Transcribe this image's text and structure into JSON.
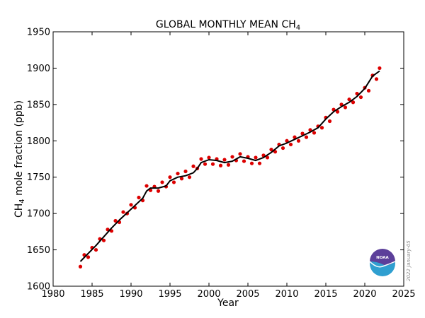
{
  "chart_data": {
    "type": "line",
    "title": "GLOBAL MONTHLY MEAN CH",
    "title_subscript": "4",
    "xlabel": "Year",
    "ylabel": {
      "pre": "CH",
      "sub": "4",
      "post": " mole fraction (ppb)"
    },
    "xlim": [
      1980,
      2025
    ],
    "ylim": [
      1600,
      1950
    ],
    "x_ticks": [
      "1980",
      "1985",
      "1990",
      "1995",
      "2000",
      "2005",
      "2010",
      "2015",
      "2020",
      "2025"
    ],
    "y_ticks": [
      "1600",
      "1650",
      "1700",
      "1750",
      "1800",
      "1850",
      "1900",
      "1950"
    ],
    "grid": false,
    "legend": "none",
    "series": [
      {
        "style": "points",
        "color": "#dd0000",
        "x": [
          1983.5,
          1984.0,
          1984.5,
          1985.0,
          1985.5,
          1986.0,
          1986.5,
          1987.0,
          1987.5,
          1988.0,
          1988.5,
          1989.0,
          1989.5,
          1990.0,
          1990.5,
          1991.0,
          1991.5,
          1992.0,
          1992.5,
          1993.0,
          1993.5,
          1994.0,
          1994.5,
          1995.0,
          1995.5,
          1996.0,
          1996.5,
          1997.0,
          1997.5,
          1998.0,
          1998.5,
          1999.0,
          1999.5,
          2000.0,
          2000.5,
          2001.0,
          2001.5,
          2002.0,
          2002.5,
          2003.0,
          2003.5,
          2004.0,
          2004.5,
          2005.0,
          2005.5,
          2006.0,
          2006.5,
          2007.0,
          2007.5,
          2008.0,
          2008.5,
          2009.0,
          2009.5,
          2010.0,
          2010.5,
          2011.0,
          2011.5,
          2012.0,
          2012.5,
          2013.0,
          2013.5,
          2014.0,
          2014.5,
          2015.0,
          2015.5,
          2016.0,
          2016.5,
          2017.0,
          2017.5,
          2018.0,
          2018.5,
          2019.0,
          2019.5,
          2020.0,
          2020.5,
          2021.0,
          2021.5,
          2021.9
        ],
        "y": [
          1627,
          1643,
          1640,
          1653,
          1650,
          1665,
          1663,
          1678,
          1676,
          1690,
          1688,
          1702,
          1700,
          1712,
          1708,
          1722,
          1718,
          1738,
          1732,
          1737,
          1731,
          1743,
          1737,
          1750,
          1743,
          1755,
          1748,
          1758,
          1750,
          1765,
          1762,
          1775,
          1768,
          1777,
          1768,
          1775,
          1766,
          1774,
          1767,
          1778,
          1773,
          1782,
          1772,
          1778,
          1769,
          1777,
          1769,
          1780,
          1777,
          1788,
          1785,
          1795,
          1790,
          1800,
          1795,
          1805,
          1800,
          1810,
          1805,
          1815,
          1811,
          1820,
          1818,
          1832,
          1827,
          1843,
          1840,
          1850,
          1846,
          1857,
          1853,
          1865,
          1860,
          1873,
          1869,
          1890,
          1885,
          1900
        ]
      },
      {
        "style": "line",
        "color": "#000000",
        "x": [
          1983.5,
          1984.5,
          1985.5,
          1986.5,
          1987.5,
          1988.5,
          1989.5,
          1990.5,
          1991.5,
          1992.0,
          1992.5,
          1993.5,
          1994.5,
          1995.0,
          1996.0,
          1997.0,
          1998.0,
          1998.5,
          1999.0,
          2000.0,
          2001.0,
          2002.0,
          2003.0,
          2004.0,
          2005.0,
          2006.0,
          2007.0,
          2008.0,
          2009.0,
          2010.0,
          2011.0,
          2012.0,
          2013.0,
          2014.0,
          2015.0,
          2016.0,
          2017.0,
          2018.0,
          2019.0,
          2020.0,
          2021.0,
          2021.9
        ],
        "y": [
          1634,
          1645,
          1656,
          1668,
          1680,
          1691,
          1701,
          1711,
          1721,
          1731,
          1735,
          1735,
          1738,
          1745,
          1750,
          1752,
          1756,
          1762,
          1770,
          1774,
          1773,
          1770,
          1772,
          1778,
          1776,
          1773,
          1777,
          1784,
          1793,
          1797,
          1802,
          1807,
          1812,
          1818,
          1830,
          1840,
          1847,
          1853,
          1861,
          1872,
          1889,
          1896
        ]
      }
    ],
    "annotation": "2022 January-05",
    "logo_text": "NOAA"
  }
}
